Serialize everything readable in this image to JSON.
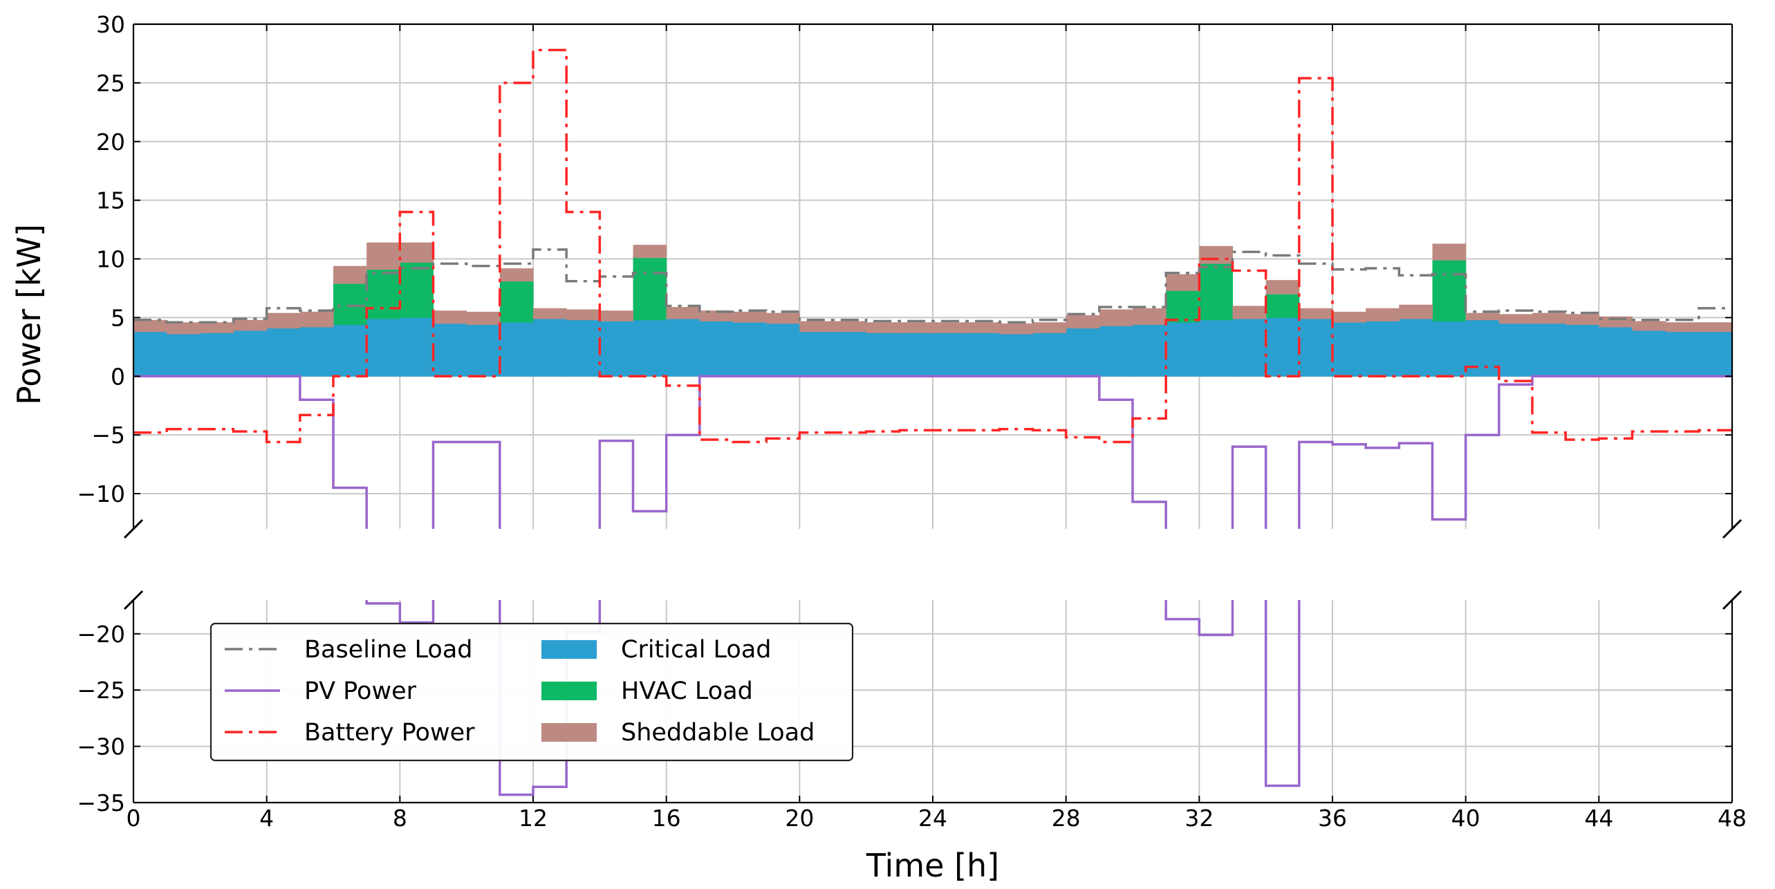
{
  "chart_data": {
    "type": "line",
    "title": "",
    "xlabel": "Time [h]",
    "ylabel": "Power [kW]",
    "xlim": [
      0,
      48
    ],
    "ylim_upper_segment": [
      -13,
      30
    ],
    "ylim_lower_segment": [
      -35,
      -17
    ],
    "grid": true,
    "legend_position": "bottom-left",
    "x_ticks": [
      0,
      4,
      8,
      12,
      16,
      20,
      24,
      28,
      32,
      36,
      40,
      44,
      48
    ],
    "y_ticks_upper": [
      30,
      25,
      20,
      15,
      10,
      5,
      0,
      -5,
      -10
    ],
    "y_ticks_lower": [
      -20,
      -25,
      -30,
      -35
    ],
    "x_tick_labels": [
      "0",
      "4",
      "8",
      "12",
      "16",
      "20",
      "24",
      "28",
      "32",
      "36",
      "40",
      "44",
      "48"
    ],
    "y_tick_labels_upper": [
      "30",
      "25",
      "20",
      "15",
      "10",
      "5",
      "0",
      "−5",
      "−10"
    ],
    "y_tick_labels_lower": [
      "−20",
      "−25",
      "−30",
      "−35"
    ],
    "x_hours": [
      0,
      1,
      2,
      3,
      4,
      5,
      6,
      7,
      8,
      9,
      10,
      11,
      12,
      13,
      14,
      15,
      16,
      17,
      18,
      19,
      20,
      21,
      22,
      23,
      24,
      25,
      26,
      27,
      28,
      29,
      30,
      31,
      32,
      33,
      34,
      35,
      36,
      37,
      38,
      39,
      40,
      41,
      42,
      43,
      44,
      45,
      46,
      47
    ],
    "series": [
      {
        "name": "Critical Load",
        "kind": "stacked-area",
        "color": "#2b9fd0",
        "values": [
          3.8,
          3.6,
          3.7,
          3.9,
          4.1,
          4.2,
          4.4,
          4.9,
          5.0,
          4.5,
          4.4,
          4.6,
          4.9,
          4.8,
          4.7,
          4.8,
          4.9,
          4.7,
          4.6,
          4.5,
          3.8,
          3.8,
          3.7,
          3.7,
          3.7,
          3.7,
          3.6,
          3.7,
          4.1,
          4.3,
          4.4,
          4.6,
          4.8,
          4.9,
          5.0,
          4.9,
          4.6,
          4.7,
          4.9,
          4.7,
          4.8,
          4.5,
          4.5,
          4.4,
          4.2,
          3.9,
          3.8,
          3.8
        ]
      },
      {
        "name": "HVAC Load",
        "kind": "stacked-area",
        "color": "#0fb865",
        "values": [
          0,
          0,
          0,
          0,
          0,
          0,
          3.5,
          4.2,
          4.7,
          0,
          0,
          3.5,
          0,
          0,
          0,
          5.3,
          0,
          0,
          0,
          0,
          0,
          0,
          0,
          0,
          0,
          0,
          0,
          0,
          0,
          0,
          0,
          2.7,
          4.8,
          0,
          2.0,
          0,
          0,
          0,
          0,
          5.2,
          0,
          0,
          0,
          0,
          0,
          0,
          0,
          0
        ]
      },
      {
        "name": "Sheddable Load",
        "kind": "stacked-area",
        "color": "#bd8a82",
        "values": [
          1.0,
          1.0,
          0.9,
          0.9,
          1.3,
          1.3,
          1.5,
          2.3,
          1.7,
          1.1,
          1.1,
          1.1,
          0.9,
          0.9,
          0.9,
          1.1,
          1.0,
          0.9,
          0.9,
          0.9,
          0.9,
          0.9,
          0.9,
          0.9,
          0.9,
          0.9,
          0.9,
          0.9,
          1.1,
          1.4,
          1.4,
          1.4,
          1.5,
          1.1,
          1.2,
          0.9,
          0.9,
          1.1,
          1.2,
          1.4,
          0.6,
          0.8,
          0.9,
          0.9,
          0.9,
          0.8,
          0.8,
          0.8
        ]
      },
      {
        "name": "Baseline Load",
        "kind": "step-line",
        "color": "#7a7a7a",
        "dash": "dash-dot",
        "values": [
          4.8,
          4.6,
          4.6,
          4.9,
          5.8,
          5.6,
          6.0,
          8.8,
          9.2,
          9.6,
          9.4,
          9.6,
          10.8,
          8.1,
          8.5,
          8.8,
          6.0,
          5.5,
          5.6,
          5.5,
          4.8,
          4.8,
          4.7,
          4.7,
          4.7,
          4.7,
          4.6,
          4.8,
          5.3,
          5.9,
          5.9,
          8.8,
          9.3,
          10.6,
          10.3,
          9.6,
          9.1,
          9.2,
          8.6,
          8.7,
          5.5,
          5.6,
          5.5,
          5.4,
          4.9,
          4.8,
          4.8,
          5.8
        ]
      },
      {
        "name": "PV Power",
        "kind": "step-line",
        "color": "#9966cc",
        "values": [
          0,
          0,
          0,
          0,
          0,
          -2.0,
          -9.5,
          -17.3,
          -19.0,
          -5.6,
          -5.6,
          -34.3,
          -33.6,
          -19.8,
          -5.5,
          -11.5,
          -5.0,
          0,
          0,
          0,
          0,
          0,
          0,
          0,
          0,
          0,
          0,
          0,
          0,
          -2.0,
          -10.7,
          -18.7,
          -20.1,
          -6.0,
          -33.5,
          -5.6,
          -5.8,
          -6.1,
          -5.7,
          -12.2,
          -5.0,
          -0.7,
          0,
          0,
          0,
          0,
          0,
          0
        ]
      },
      {
        "name": "Battery Power",
        "kind": "step-line",
        "color": "#ff2424",
        "dash": "dash-dot",
        "values": [
          -4.8,
          -4.5,
          -4.5,
          -4.7,
          -5.6,
          -3.3,
          0,
          5.8,
          14.0,
          0,
          0,
          25.0,
          27.8,
          14.0,
          0,
          0,
          -0.8,
          -5.4,
          -5.6,
          -5.3,
          -4.8,
          -4.8,
          -4.7,
          -4.6,
          -4.6,
          -4.6,
          -4.5,
          -4.6,
          -5.2,
          -5.6,
          -3.6,
          4.8,
          10.0,
          9.0,
          0,
          25.4,
          0,
          0,
          0,
          0,
          0.8,
          -0.4,
          -4.8,
          -5.4,
          -5.3,
          -4.7,
          -4.7,
          -4.6
        ]
      }
    ],
    "legend": [
      {
        "name": "Baseline Load",
        "symbol": "dash-dot-line",
        "color": "#7a7a7a"
      },
      {
        "name": "PV Power",
        "symbol": "line",
        "color": "#9966cc"
      },
      {
        "name": "Battery Power",
        "symbol": "dash-dot-line",
        "color": "#ff2424"
      },
      {
        "name": "Critical Load",
        "symbol": "patch",
        "color": "#2b9fd0"
      },
      {
        "name": "HVAC Load",
        "symbol": "patch",
        "color": "#0fb865"
      },
      {
        "name": "Sheddable Load",
        "symbol": "patch",
        "color": "#bd8a82"
      }
    ]
  }
}
